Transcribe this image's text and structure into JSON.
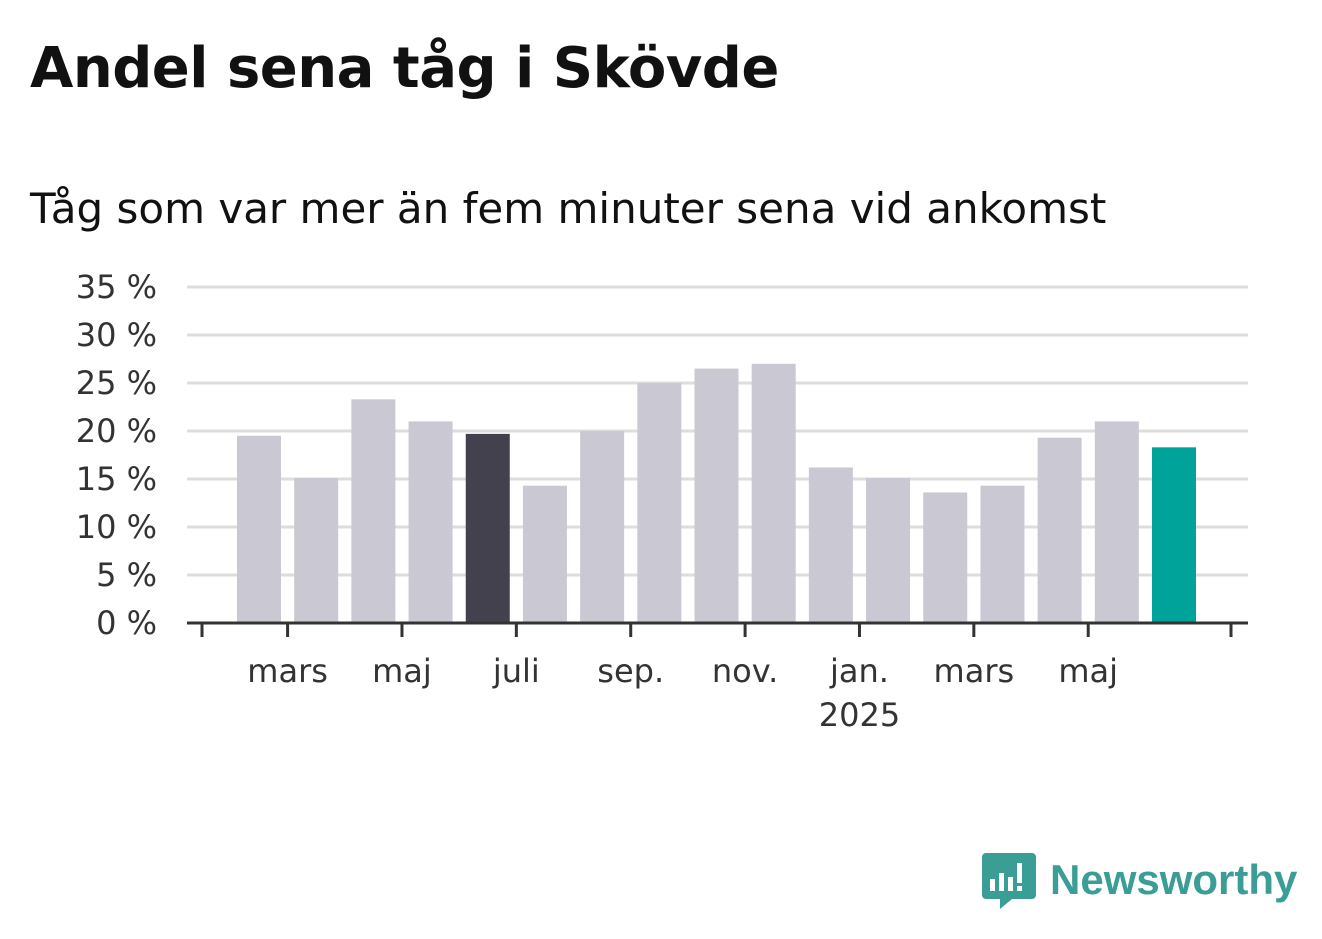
{
  "title": "Andel sena tåg i Skövde",
  "subtitle": "Tåg som var mer än fem minuter sena vid ankomst",
  "brand": {
    "name": "Newsworthy",
    "icon": "newsworthy-logo-icon",
    "color": "#3a9e96"
  },
  "colors": {
    "bar": "#c9c8d3",
    "highlight": "#42414d",
    "latest": "#00a39a",
    "grid": "#dddddd",
    "axis": "#333333"
  },
  "chart_data": {
    "type": "bar",
    "title": "Andel sena tåg i Skövde",
    "subtitle": "Tåg som var mer än fem minuter sena vid ankomst",
    "ylim": [
      0,
      35
    ],
    "yticks": [
      "0 %",
      "5 %",
      "10 %",
      "15 %",
      "20 %",
      "25 %",
      "30 %",
      "35 %"
    ],
    "ytick_values": [
      0,
      5,
      10,
      15,
      20,
      25,
      30,
      35
    ],
    "grid": true,
    "x_tick_labels": [
      {
        "label": "mars",
        "after_bar": 1
      },
      {
        "label": "maj",
        "after_bar": 3
      },
      {
        "label": "juli",
        "after_bar": 5
      },
      {
        "label": "sep.",
        "after_bar": 7
      },
      {
        "label": "nov.",
        "after_bar": 9
      },
      {
        "label": "jan.",
        "sub": "2025",
        "after_bar": 11
      },
      {
        "label": "mars",
        "after_bar": 13
      },
      {
        "label": "maj",
        "after_bar": 15
      }
    ],
    "values": [
      19.5,
      15.1,
      23.3,
      21.0,
      19.7,
      14.3,
      20.0,
      25.0,
      26.5,
      27.0,
      16.2,
      15.1,
      13.6,
      14.3,
      19.3,
      21.0,
      18.3
    ],
    "highlight_index": 4,
    "latest_index": 16
  }
}
